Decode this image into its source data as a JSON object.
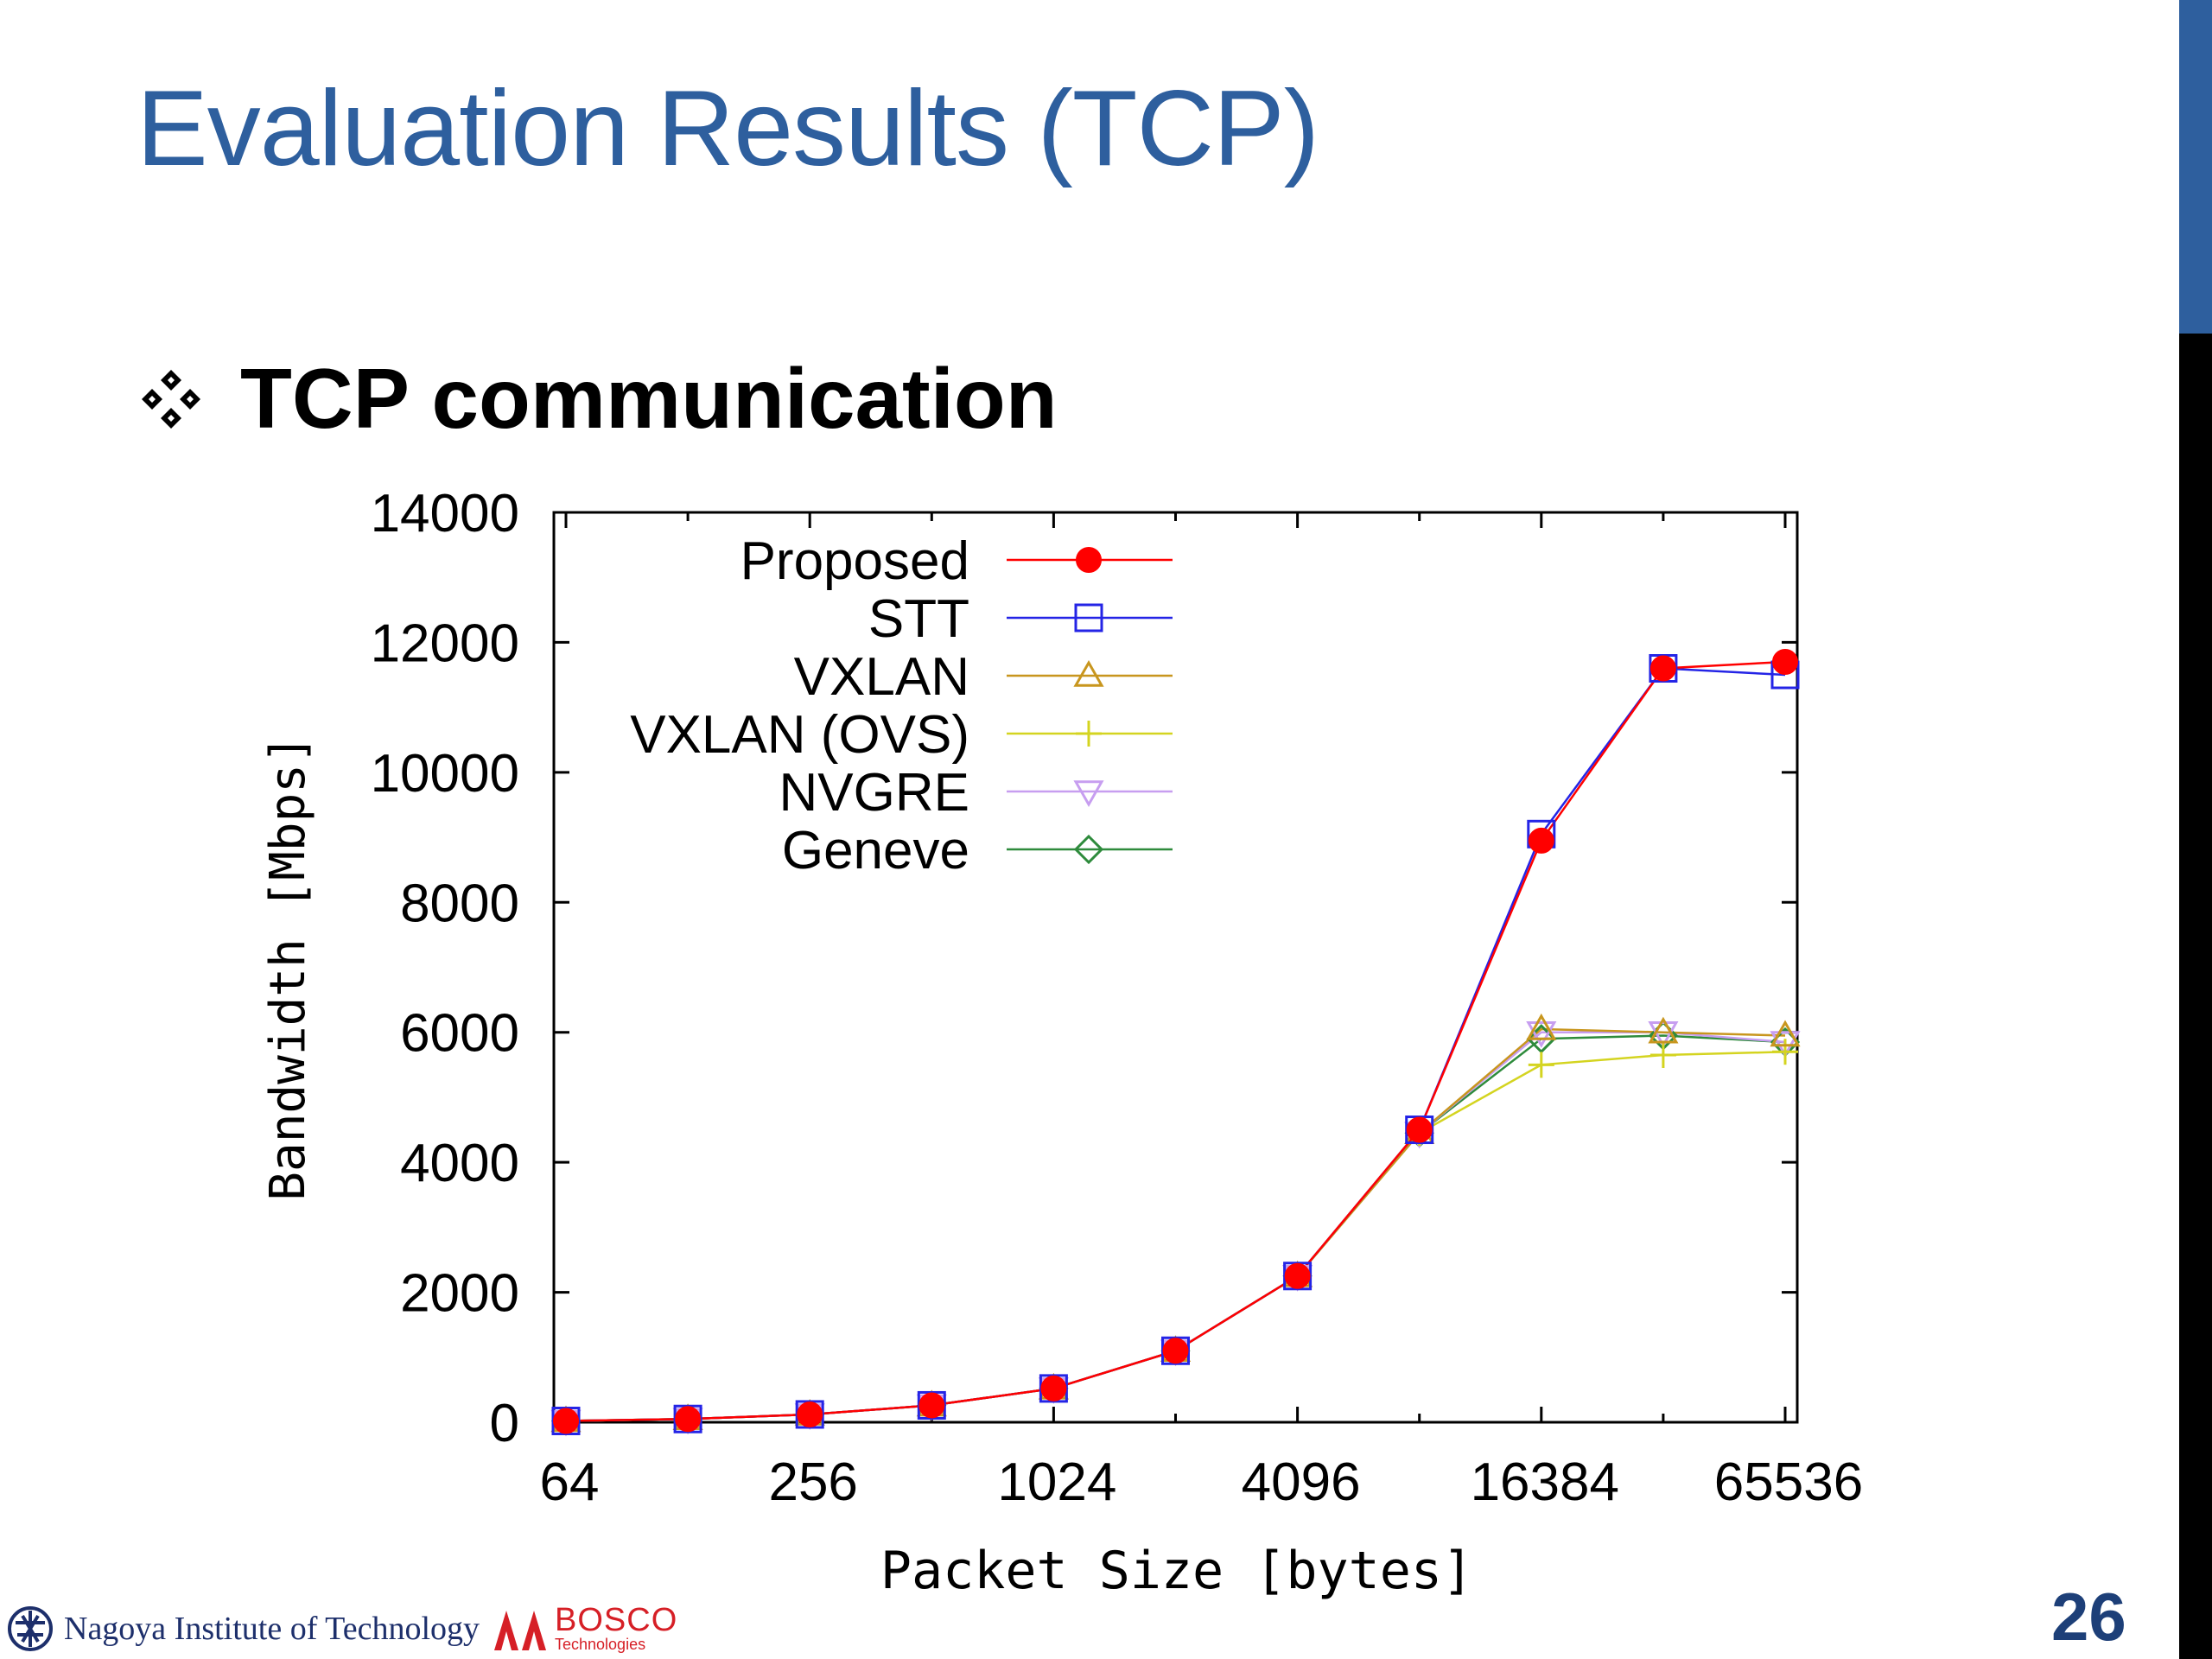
{
  "slide": {
    "title": "Evaluation Results (TCP)",
    "bullet": "TCP communication",
    "page_number": "26",
    "footer": {
      "institute": "Nagoya Institute of Technology",
      "company": "BOSCO",
      "company_sub": "Technologies"
    }
  },
  "chart_data": {
    "type": "line",
    "title": "",
    "xlabel": "Packet Size [bytes]",
    "ylabel": "Bandwidth [Mbps]",
    "x_scale": "log2",
    "x": [
      64,
      128,
      256,
      512,
      1024,
      2048,
      4096,
      8192,
      16384,
      32768,
      65536
    ],
    "x_ticks": [
      64,
      256,
      1024,
      4096,
      16384,
      65536
    ],
    "x_tick_labels": [
      "64",
      "256",
      "1024",
      "4096",
      "16384",
      "65536"
    ],
    "ylim": [
      0,
      14000
    ],
    "y_ticks": [
      0,
      2000,
      4000,
      6000,
      8000,
      10000,
      12000,
      14000
    ],
    "y_tick_labels": [
      "0",
      "2000",
      "4000",
      "6000",
      "8000",
      "10000",
      "12000",
      "14000"
    ],
    "grid": false,
    "legend_position": "top-left",
    "series": [
      {
        "name": "Proposed",
        "color": "#ff0000",
        "marker": "filled-circle",
        "values": [
          20,
          50,
          120,
          260,
          520,
          1100,
          2250,
          4500,
          8950,
          11600,
          11700
        ]
      },
      {
        "name": "STT",
        "color": "#2424e6",
        "marker": "square",
        "values": [
          20,
          50,
          120,
          260,
          520,
          1100,
          2250,
          4500,
          9050,
          11600,
          11500
        ]
      },
      {
        "name": "VXLAN",
        "color": "#c8961e",
        "marker": "triangle-up",
        "values": [
          20,
          50,
          120,
          260,
          520,
          1100,
          2250,
          4450,
          6050,
          6000,
          5950
        ]
      },
      {
        "name": "VXLAN (OVS)",
        "color": "#d4d420",
        "marker": "plus",
        "values": [
          20,
          50,
          120,
          260,
          520,
          1100,
          2250,
          4450,
          5500,
          5650,
          5700
        ]
      },
      {
        "name": "NVGRE",
        "color": "#c79ef0",
        "marker": "triangle-down",
        "values": [
          20,
          50,
          120,
          260,
          520,
          1100,
          2250,
          4450,
          6000,
          6000,
          5850
        ]
      },
      {
        "name": "Geneve",
        "color": "#2e8b3c",
        "marker": "diamond",
        "values": [
          20,
          50,
          120,
          260,
          520,
          1100,
          2250,
          4450,
          5900,
          5950,
          5850
        ]
      }
    ]
  }
}
